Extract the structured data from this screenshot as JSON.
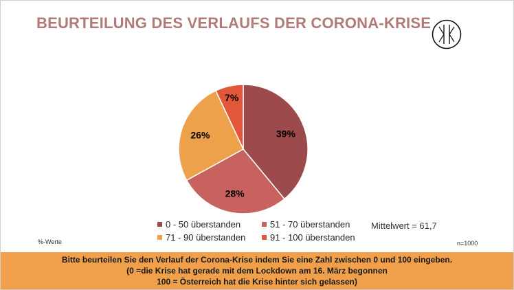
{
  "title": "BEURTEILUNG DES VERLAUFS DER CORONA-KRISE",
  "chart_data": {
    "type": "pie",
    "title": "",
    "slices": [
      {
        "label": "0 - 50 überstanden",
        "value": 39,
        "display": "39%",
        "color": "#9c4a4b"
      },
      {
        "label": "51 - 70 überstanden",
        "value": 28,
        "display": "28%",
        "color": "#c7625e"
      },
      {
        "label": "71 - 90 überstanden",
        "value": 26,
        "display": "26%",
        "color": "#eea14b"
      },
      {
        "label": "91 - 100 überstanden",
        "value": 7,
        "display": "7%",
        "color": "#e2573a"
      }
    ],
    "legend_placement": "bottom"
  },
  "mean": "Mittelwert = 61,7",
  "unit_note": "%-Werte",
  "sample_note": "n=1000",
  "footer": {
    "line1": "Bitte beurteilen Sie den Verlauf der Corona-Krise indem Sie eine Zahl zwischen 0 und 100 eingeben.",
    "line2": "(0 =die Krise hat gerade mit dem Lockdown am 16. März begonnen",
    "line3": "100 = Österreich hat die Krise hinter sich gelassen)"
  },
  "logo_icon": "kk-monogram-icon"
}
